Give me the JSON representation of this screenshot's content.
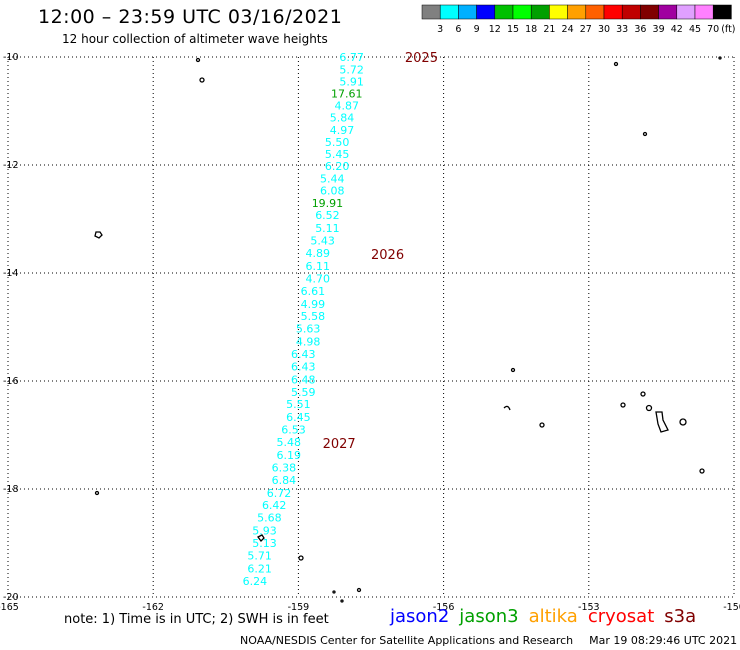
{
  "header": {
    "title": "12:00 – 23:59 UTC 03/16/2021",
    "subtitle": "12 hour collection of altimeter wave heights"
  },
  "legend": {
    "unit": "(ft)",
    "colors": [
      "#808080",
      "#00ffff",
      "#00b0ff",
      "#0000ff",
      "#00c000",
      "#00ff00",
      "#00a000",
      "#ffff00",
      "#ffa000",
      "#ff6000",
      "#ff0000",
      "#c00000",
      "#800000",
      "#a000a0",
      "#e0a0ff",
      "#ff80ff",
      "#000000"
    ],
    "labels": [
      "3",
      "6",
      "9",
      "12",
      "15",
      "18",
      "21",
      "24",
      "27",
      "30",
      "33",
      "36",
      "39",
      "42",
      "45",
      "70"
    ]
  },
  "map": {
    "lon_range": [
      -165,
      -150
    ],
    "lat_range": [
      -20,
      -10
    ],
    "lon_ticks": [
      "-165",
      "-162",
      "-159",
      "-156",
      "-153",
      "-150"
    ],
    "lat_ticks": [
      "-10",
      "-12",
      "-14",
      "-16",
      "-18",
      "-20"
    ],
    "grid": true,
    "track_color": "#00ffff",
    "time_label_color": "#800000",
    "time_labels": [
      {
        "text": "2025",
        "lon": -156.8,
        "lat": -10.0
      },
      {
        "text": "2026",
        "lon": -157.5,
        "lat": -13.65
      },
      {
        "text": "2027",
        "lon": -158.5,
        "lat": -17.15
      }
    ],
    "observations": [
      {
        "text": "6.77",
        "lon": -157.9,
        "lat": -10.0
      },
      {
        "text": "5.72",
        "lon": -157.9,
        "lat": -10.23
      },
      {
        "text": "5.91",
        "lon": -157.9,
        "lat": -10.45
      },
      {
        "text": "17.61",
        "lon": -158.0,
        "lat": -10.68,
        "color": "#00a000"
      },
      {
        "text": "4.87",
        "lon": -158.0,
        "lat": -10.9
      },
      {
        "text": "5.84",
        "lon": -158.1,
        "lat": -11.12
      },
      {
        "text": "4.97",
        "lon": -158.1,
        "lat": -11.35
      },
      {
        "text": "5.50",
        "lon": -158.2,
        "lat": -11.57
      },
      {
        "text": "5.45",
        "lon": -158.2,
        "lat": -11.8
      },
      {
        "text": "6.20",
        "lon": -158.2,
        "lat": -12.02
      },
      {
        "text": "5.44",
        "lon": -158.3,
        "lat": -12.25
      },
      {
        "text": "6.08",
        "lon": -158.3,
        "lat": -12.47
      },
      {
        "text": "19.91",
        "lon": -158.4,
        "lat": -12.7,
        "color": "#00a000"
      },
      {
        "text": "6.52",
        "lon": -158.4,
        "lat": -12.93
      },
      {
        "text": "5.11",
        "lon": -158.4,
        "lat": -13.17
      },
      {
        "text": "5.43",
        "lon": -158.5,
        "lat": -13.4
      },
      {
        "text": "4.89",
        "lon": -158.6,
        "lat": -13.63
      },
      {
        "text": "6.11",
        "lon": -158.6,
        "lat": -13.87
      },
      {
        "text": "4.70",
        "lon": -158.6,
        "lat": -14.1
      },
      {
        "text": "6.61",
        "lon": -158.7,
        "lat": -14.33
      },
      {
        "text": "4.99",
        "lon": -158.7,
        "lat": -14.57
      },
      {
        "text": "5.58",
        "lon": -158.7,
        "lat": -14.8
      },
      {
        "text": "5.63",
        "lon": -158.8,
        "lat": -15.03
      },
      {
        "text": "4.98",
        "lon": -158.8,
        "lat": -15.27
      },
      {
        "text": "6.43",
        "lon": -158.9,
        "lat": -15.5
      },
      {
        "text": "6.43",
        "lon": -158.9,
        "lat": -15.73
      },
      {
        "text": "6.48",
        "lon": -158.9,
        "lat": -15.97
      },
      {
        "text": "5.59",
        "lon": -158.9,
        "lat": -16.2
      },
      {
        "text": "5.51",
        "lon": -159.0,
        "lat": -16.43
      },
      {
        "text": "6.45",
        "lon": -159.0,
        "lat": -16.67
      },
      {
        "text": "6.53",
        "lon": -159.1,
        "lat": -16.9
      },
      {
        "text": "5.48",
        "lon": -159.2,
        "lat": -17.13
      },
      {
        "text": "6.19",
        "lon": -159.2,
        "lat": -17.37
      },
      {
        "text": "6.38",
        "lon": -159.3,
        "lat": -17.6
      },
      {
        "text": "6.84",
        "lon": -159.3,
        "lat": -17.83
      },
      {
        "text": "6.72",
        "lon": -159.4,
        "lat": -18.07
      },
      {
        "text": "6.42",
        "lon": -159.5,
        "lat": -18.3
      },
      {
        "text": "5.68",
        "lon": -159.6,
        "lat": -18.53
      },
      {
        "text": "5.93",
        "lon": -159.7,
        "lat": -18.77
      },
      {
        "text": "5.13",
        "lon": -159.7,
        "lat": -19.0
      },
      {
        "text": "5.71",
        "lon": -159.8,
        "lat": -19.23
      },
      {
        "text": "6.21",
        "lon": -159.8,
        "lat": -19.47
      },
      {
        "text": "6.24",
        "lon": -159.9,
        "lat": -19.7
      }
    ]
  },
  "footer": {
    "note": "note: 1) Time is in UTC; 2) SWH is in feet",
    "satellites": [
      {
        "name": "jason2",
        "color": "#0000ff"
      },
      {
        "name": "jason3",
        "color": "#00a000"
      },
      {
        "name": "altika",
        "color": "#ffa000"
      },
      {
        "name": "cryosat",
        "color": "#ff0000"
      },
      {
        "name": "s3a",
        "color": "#800000"
      }
    ],
    "credit": "NOAA/NESDIS Center for Satellite Applications and Research",
    "timestamp": "Mar 19 08:29:46 UTC 2021"
  }
}
